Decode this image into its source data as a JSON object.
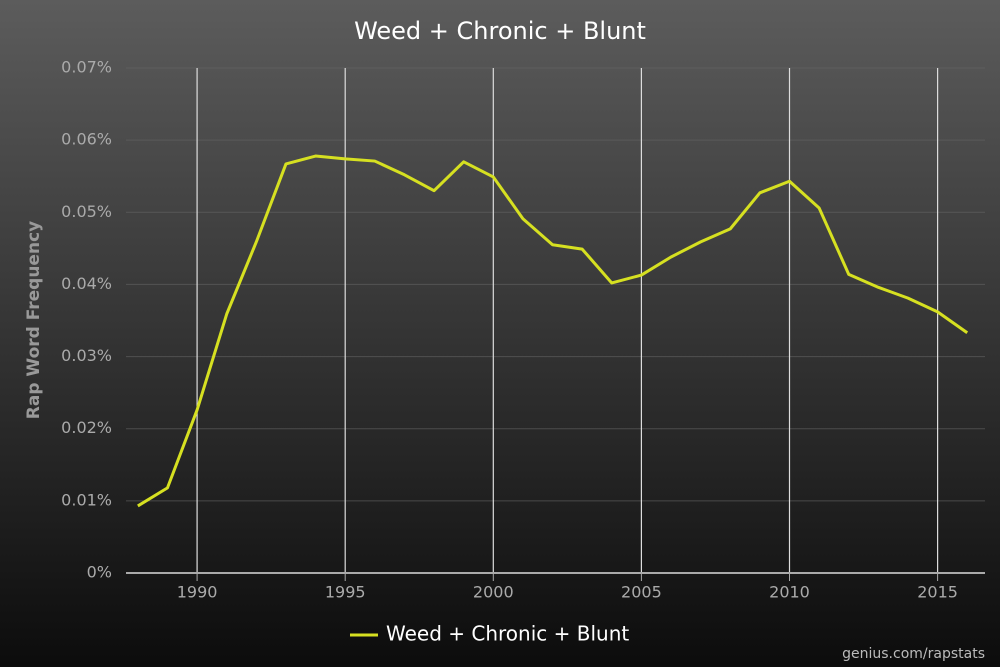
{
  "chart_data": {
    "type": "line",
    "title": "Weed + Chronic + Blunt",
    "y_label": "Rap Word Frequency",
    "x": [
      1988,
      1989,
      1990,
      1991,
      1992,
      1993,
      1994,
      1995,
      1996,
      1997,
      1998,
      1999,
      2000,
      2001,
      2002,
      2003,
      2004,
      2005,
      2006,
      2007,
      2008,
      2009,
      2010,
      2011,
      2012,
      2013,
      2014,
      2015,
      2016
    ],
    "series": [
      {
        "name": "Weed + Chronic + Blunt",
        "color": "#d6e021",
        "values": [
          0.0093,
          0.0118,
          0.0226,
          0.0359,
          0.0459,
          0.0567,
          0.0578,
          0.0574,
          0.0571,
          0.0552,
          0.053,
          0.057,
          0.0549,
          0.0491,
          0.0455,
          0.0449,
          0.0402,
          0.0413,
          0.0438,
          0.0459,
          0.0477,
          0.0527,
          0.0543,
          0.0506,
          0.0414,
          0.0396,
          0.0381,
          0.0362,
          0.0333
        ]
      }
    ],
    "xlim": [
      1987.6,
      2016.6
    ],
    "xticks": [
      1990,
      1995,
      2000,
      2005,
      2010,
      2015
    ],
    "ylim": [
      0,
      0.07
    ],
    "yticks": [
      {
        "value": 0,
        "label": "0%"
      },
      {
        "value": 0.01,
        "label": "0.01%"
      },
      {
        "value": 0.02,
        "label": "0.02%"
      },
      {
        "value": 0.03,
        "label": "0.03%"
      },
      {
        "value": 0.04,
        "label": "0.04%"
      },
      {
        "value": 0.05,
        "label": "0.05%"
      },
      {
        "value": 0.06,
        "label": "0.06%"
      },
      {
        "value": 0.07,
        "label": "0.07%"
      }
    ],
    "grid": true,
    "legend": "bottom",
    "source": "genius.com/rapstats"
  }
}
